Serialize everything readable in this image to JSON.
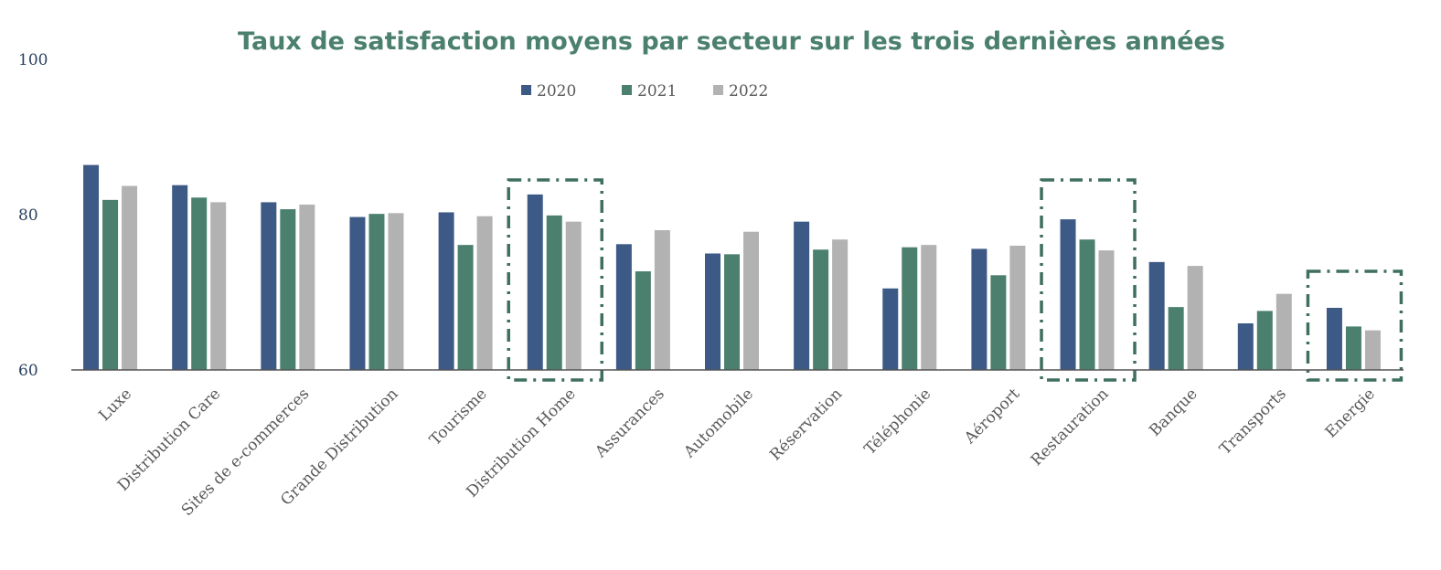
{
  "chart_data": {
    "type": "bar",
    "title": "Taux de satisfaction moyens par secteur sur les trois dernières années",
    "xlabel": "",
    "ylabel": "",
    "ylim": [
      60,
      100
    ],
    "yticks": [
      "60",
      "80",
      "100"
    ],
    "grid": false,
    "legend_position": "top-center",
    "categories": [
      "Luxe",
      "Distribution Care",
      "Sites de e-commerces",
      "Grande Distribution",
      "Tourisme",
      "Distribution Home",
      "Assurances",
      "Automobile",
      "Réservation",
      "Téléphonie",
      "Aéroport",
      "Restauration",
      "Banque",
      "Transports",
      "Energie"
    ],
    "series": [
      {
        "name": "2020",
        "color": "#3d5a86",
        "values": [
          86.4,
          83.8,
          81.6,
          79.7,
          80.3,
          82.6,
          76.2,
          75.0,
          79.1,
          70.5,
          75.6,
          79.4,
          73.9,
          66.0,
          68.0
        ]
      },
      {
        "name": "2021",
        "color": "#4a806d",
        "values": [
          81.9,
          82.2,
          80.7,
          80.1,
          76.1,
          79.9,
          72.7,
          74.9,
          75.5,
          75.8,
          72.2,
          76.8,
          68.1,
          67.6,
          65.6
        ]
      },
      {
        "name": "2022",
        "color": "#b2b2b2",
        "values": [
          83.7,
          81.6,
          81.3,
          80.2,
          79.8,
          79.1,
          78.0,
          77.8,
          76.8,
          76.1,
          76.0,
          75.4,
          73.4,
          69.8,
          65.1
        ]
      }
    ],
    "highlighted": [
      "Distribution Home",
      "Restauration",
      "Energie"
    ],
    "title_color": "#4a806d",
    "axis_color": "#555555",
    "highlight_color": "#3f6f60"
  }
}
